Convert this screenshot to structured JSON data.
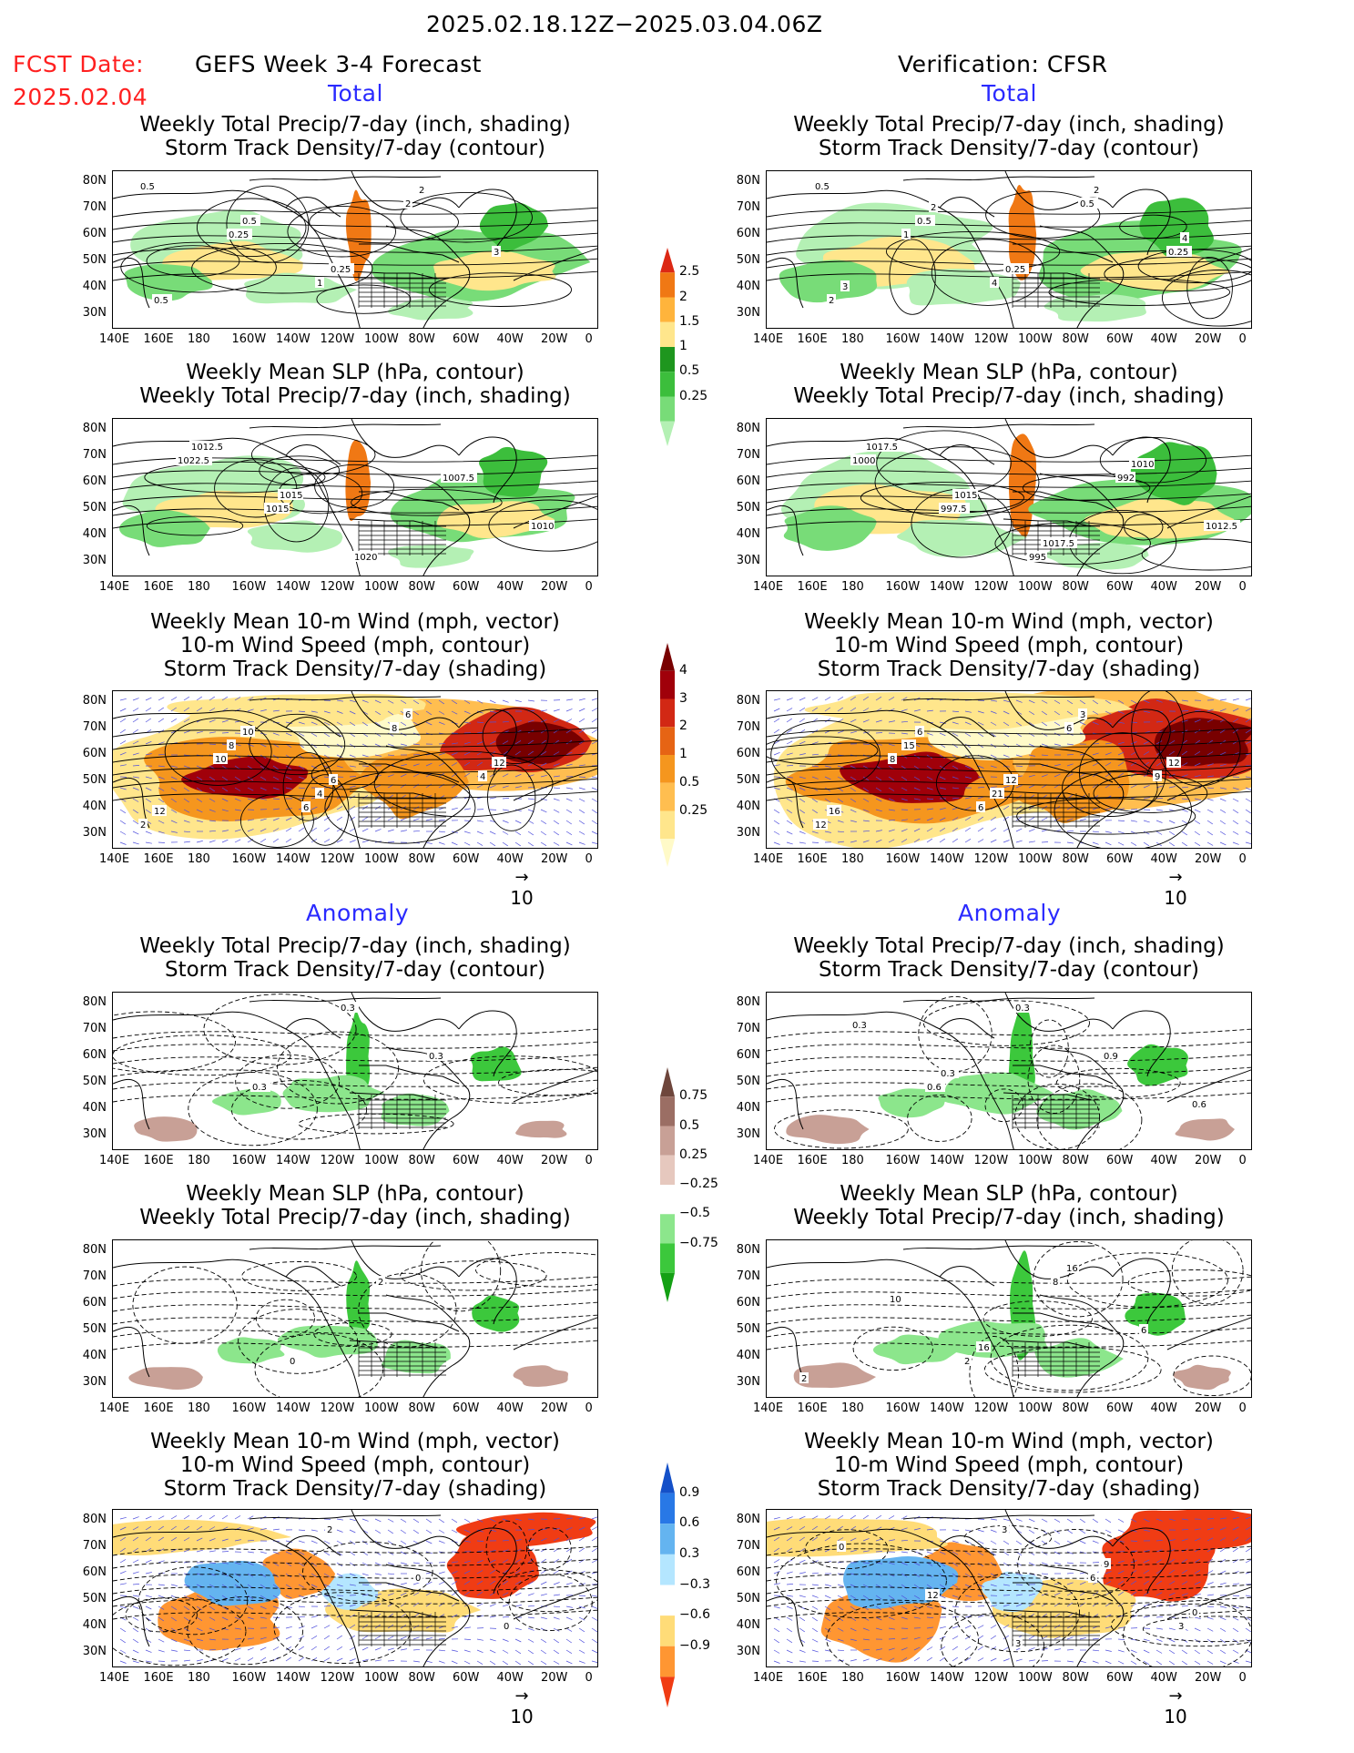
{
  "header": {
    "date_range": "2025.02.18.12Z−2025.03.04.06Z",
    "fcst_date_label": "FCST Date:",
    "fcst_date_value": "2025.02.04",
    "left_title": "GEFS Week 3-4 Forecast",
    "right_title": "Verification: CFSR",
    "total_label": "Total",
    "anomaly_label": "Anomaly"
  },
  "panel_titles": {
    "precip_storm": [
      "Weekly Total Precip/7-day (inch, shading)",
      "Storm Track Density/7-day (contour)"
    ],
    "slp_precip": [
      "Weekly Mean SLP (hPa, contour)",
      "Weekly Total Precip/7-day (inch, shading)"
    ],
    "wind_storm": [
      "Weekly Mean 10-m Wind (mph, vector)",
      "10-m Wind Speed (mph, contour)",
      "Storm Track Density/7-day (shading)"
    ]
  },
  "axes": {
    "lat_ticks": [
      "80N",
      "70N",
      "60N",
      "50N",
      "40N",
      "30N"
    ],
    "lon_ticks": [
      "140E",
      "160E",
      "180",
      "160W",
      "140W",
      "120W",
      "100W",
      "80W",
      "60W",
      "40W",
      "20W",
      "0"
    ]
  },
  "vector_ref": "10",
  "colorbars": {
    "precip_total": {
      "levels": [
        "0.25",
        "0.5",
        "1",
        "1.5",
        "2",
        "2.5"
      ],
      "colors": [
        "#b4f0b4",
        "#78dc78",
        "#3cbe3c",
        "#1e961e",
        "#ffe68c",
        "#ffb43c",
        "#f07814",
        "#dc2814"
      ]
    },
    "storm_total": {
      "levels": [
        "0.25",
        "0.5",
        "1",
        "2",
        "3",
        "4"
      ],
      "colors": [
        "#fffac8",
        "#ffe68c",
        "#ffbe50",
        "#f5961e",
        "#e66414",
        "#d22814",
        "#a0000a",
        "#780000"
      ]
    },
    "precip_anom": {
      "levels": [
        "0.75",
        "0.5",
        "0.25",
        "−0.25",
        "−0.5",
        "−0.75"
      ],
      "colors": [
        "#14a014",
        "#3cc83c",
        "#8ce68c",
        "#ffffff",
        "#e6c8be",
        "#c8a096",
        "#9b6e64",
        "#6e463c"
      ]
    },
    "storm_anom": {
      "levels": [
        "0.9",
        "0.6",
        "0.3",
        "−0.3",
        "−0.6",
        "−0.9"
      ],
      "colors": [
        "#f03c14",
        "#ff9632",
        "#ffdc78",
        "#ffffff",
        "#b4e6ff",
        "#64b4f0",
        "#2878e6",
        "#1450c8"
      ]
    }
  },
  "chart_data": [
    {
      "type": "heatmap",
      "panel": "GEFS total precip + storm track",
      "contour_labels": [
        "0.5",
        "0.25",
        "1",
        "2",
        "3",
        "0.5",
        "0.5",
        "0.25",
        "2"
      ],
      "shading": "precip_total"
    },
    {
      "type": "heatmap",
      "panel": "CFSR total precip + storm track",
      "contour_labels": [
        "0.5",
        "1",
        "4",
        "0.5",
        "0.25",
        "2",
        "0.5",
        "0.25",
        "2",
        "4",
        "3",
        "2"
      ],
      "shading": "precip_total"
    },
    {
      "type": "heatmap",
      "panel": "GEFS total SLP + precip",
      "contour_labels": [
        "1022.5",
        "1015",
        "1020",
        "1007.5",
        "1010",
        "1012.5",
        "1015"
      ],
      "shading": "precip_total"
    },
    {
      "type": "heatmap",
      "panel": "CFSR total SLP + precip",
      "contour_labels": [
        "1000",
        "997.5",
        "995",
        "992",
        "1012.5",
        "1017.5",
        "1015",
        "1017.5",
        "1010"
      ],
      "shading": "precip_total"
    },
    {
      "type": "heatmap",
      "panel": "GEFS total wind + storm density",
      "contour_labels": [
        "10",
        "6",
        "8",
        "4",
        "2",
        "8",
        "4",
        "6",
        "12",
        "12",
        "10",
        "6"
      ],
      "shading": "storm_total"
    },
    {
      "type": "heatmap",
      "panel": "CFSR total wind + storm density",
      "contour_labels": [
        "8",
        "6",
        "6",
        "9",
        "12",
        "15",
        "21",
        "3",
        "12",
        "16",
        "6",
        "12"
      ],
      "shading": "storm_total"
    },
    {
      "type": "heatmap",
      "panel": "GEFS anomaly precip + storm track",
      "contour_labels": [
        "0.3",
        "0.3",
        "0.3"
      ],
      "shading": "precip_anom"
    },
    {
      "type": "heatmap",
      "panel": "CFSR anomaly precip + storm track",
      "contour_labels": [
        "0.6",
        "0.3",
        "0.9",
        "0.6",
        "0.3",
        "0.3"
      ],
      "shading": "precip_anom"
    },
    {
      "type": "heatmap",
      "panel": "GEFS anomaly SLP + precip",
      "contour_labels": [
        "0",
        "2"
      ],
      "shading": "precip_anom"
    },
    {
      "type": "heatmap",
      "panel": "CFSR anomaly SLP + precip",
      "contour_labels": [
        "2",
        "8",
        "6",
        "2",
        "10",
        "16",
        "16"
      ],
      "shading": "precip_anom"
    },
    {
      "type": "heatmap",
      "panel": "GEFS anomaly wind + storm density",
      "contour_labels": [
        "2",
        "0",
        "0"
      ],
      "shading": "storm_anom"
    },
    {
      "type": "heatmap",
      "panel": "CFSR anomaly wind + storm density",
      "contour_labels": [
        "3",
        "6",
        "3",
        "0",
        "12",
        "3",
        "9",
        "0"
      ],
      "shading": "storm_anom"
    }
  ]
}
